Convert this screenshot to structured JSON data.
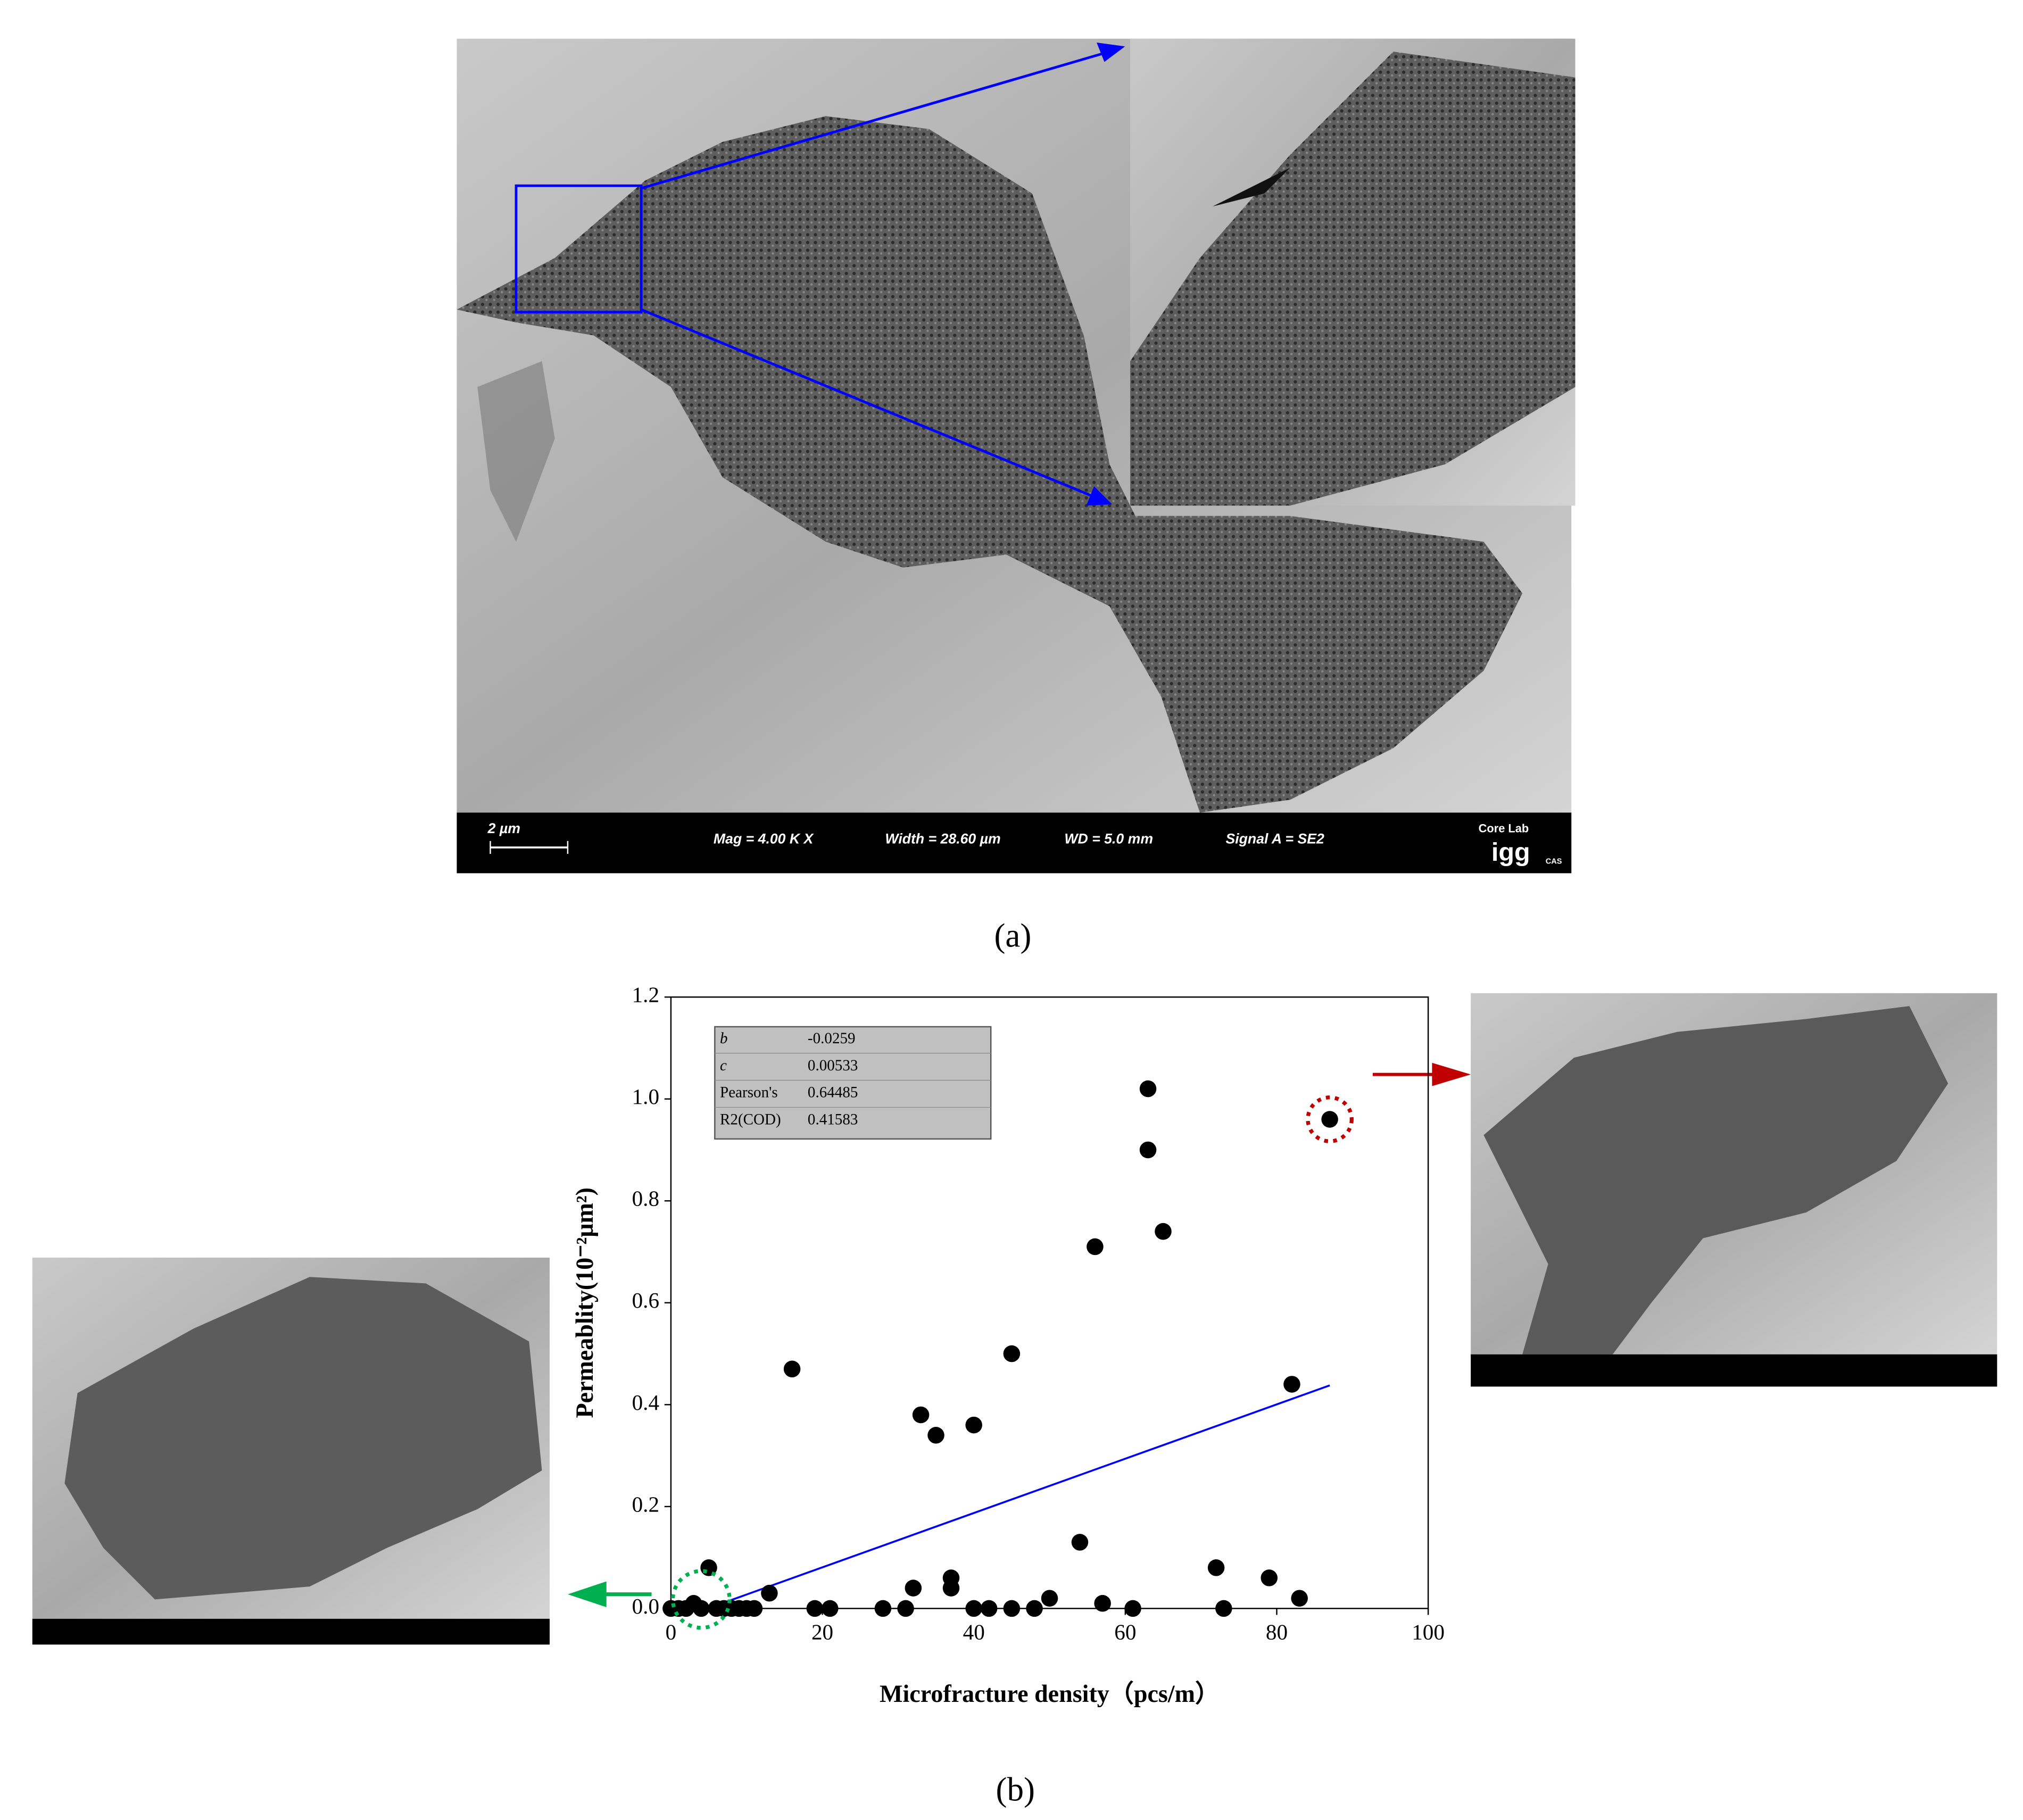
{
  "figure": {
    "panel_a": {
      "label": "(a)",
      "scale_bar": "2 µm",
      "mag": "Mag =   4.00 K X",
      "width": "Width = 28.60 µm",
      "wd": "WD =  5.0 mm",
      "signal": "Signal A = SE2",
      "logo_top": "Core Lab",
      "logo": "igg",
      "logo_sub": "CAS"
    },
    "panel_b": {
      "label": "(b)"
    }
  },
  "chart_data": {
    "type": "scatter",
    "x_label": "Microfracture density（pcs/m）",
    "y_label": "Permeablity(10⁻²μm²)",
    "x": [
      0,
      1,
      2,
      3,
      4,
      5,
      6,
      7,
      8,
      9,
      10,
      11,
      13,
      16,
      19,
      21,
      28,
      31,
      32,
      33,
      35,
      37,
      37,
      40,
      40,
      42,
      45,
      45,
      48,
      50,
      54,
      56,
      57,
      61,
      63,
      63,
      65,
      72,
      73,
      79,
      82,
      83,
      87
    ],
    "values": [
      0,
      0,
      0,
      0.01,
      0,
      0.08,
      0,
      0,
      0,
      0,
      0,
      0,
      0.03,
      0.47,
      0,
      0,
      0,
      0,
      0.04,
      0.38,
      0.34,
      0.06,
      0.04,
      0.36,
      0,
      0,
      0.5,
      0,
      0,
      0.02,
      0.13,
      0.71,
      0.01,
      0,
      1.02,
      0.9,
      0.74,
      0.08,
      0,
      0.06,
      0.44,
      0.02,
      0.96
    ],
    "color": "#000000",
    "fit": {
      "b": -0.0259,
      "c": 0.00533,
      "color": "#0000ff"
    },
    "stats": [
      {
        "label": "b",
        "value": -0.0259
      },
      {
        "label": "c",
        "value": 0.00533
      },
      {
        "label": "Pearson's",
        "value": 0.64485
      },
      {
        "label": "R2(COD)",
        "value": 0.41583
      }
    ],
    "xlim": [
      0,
      100
    ],
    "xticks": [
      0,
      20,
      40,
      60,
      80,
      100
    ],
    "ylim": [
      0,
      1.2
    ],
    "yticks": [
      {
        "value": 0,
        "label": "0.0"
      },
      0.2,
      0.4,
      0.6,
      0.8,
      {
        "value": 1,
        "label": "1.0"
      },
      1.2
    ]
  }
}
